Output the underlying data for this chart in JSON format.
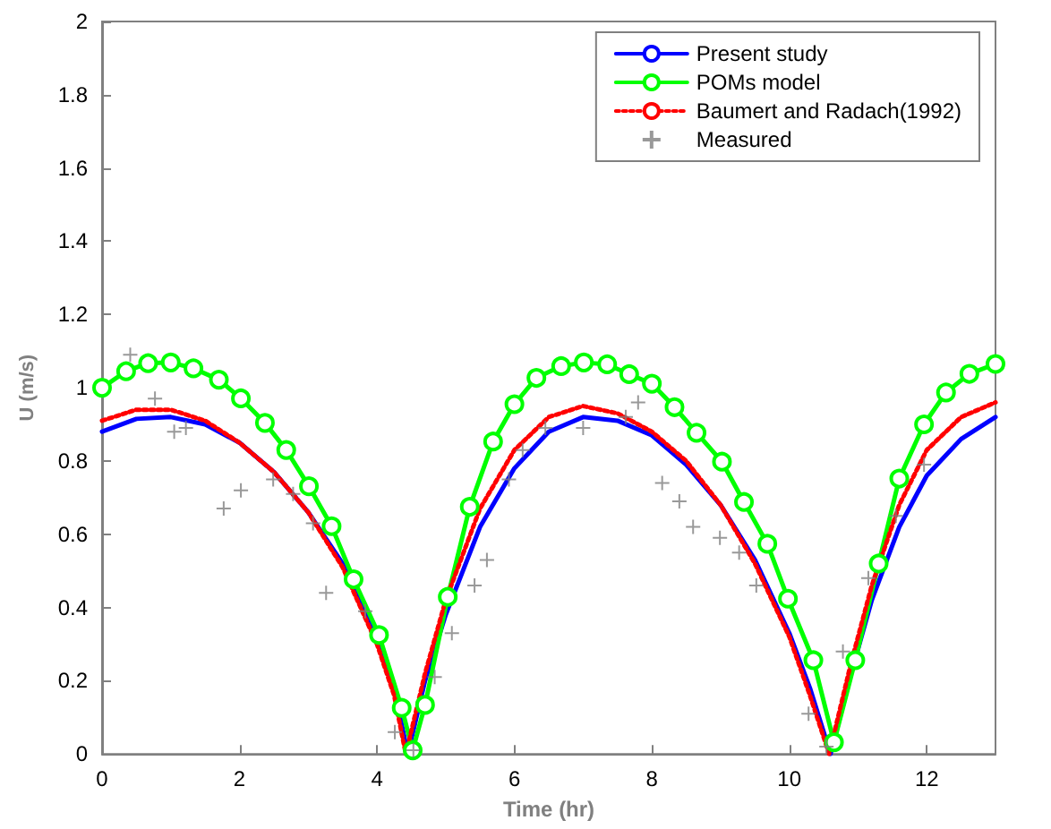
{
  "chart_data": {
    "type": "line",
    "xlabel": "Time (hr)",
    "ylabel": "U (m/s)",
    "xlim": [
      0,
      13
    ],
    "xticks": [
      0,
      2,
      4,
      6,
      8,
      10,
      12
    ],
    "ylim": [
      0,
      2
    ],
    "yticks": [
      0,
      0.2,
      0.4,
      0.6,
      0.8,
      1,
      1.2,
      1.4,
      1.6,
      1.8,
      2
    ],
    "grid": false,
    "legend": "top right",
    "series": [
      {
        "name": "Present study",
        "color": "#0000ff",
        "marker": "none",
        "line_style": "solid",
        "x": [
          0,
          0.5,
          1,
          1.5,
          2,
          2.5,
          3,
          3.5,
          4,
          4.25,
          4.45,
          4.7,
          5,
          5.5,
          6,
          6.5,
          7,
          7.5,
          8,
          8.5,
          9,
          9.5,
          10,
          10.3,
          10.6,
          10.9,
          11.2,
          11.6,
          12,
          12.5,
          13
        ],
        "values": [
          0.88,
          0.915,
          0.92,
          0.9,
          0.85,
          0.77,
          0.66,
          0.52,
          0.32,
          0.18,
          0,
          0.2,
          0.38,
          0.62,
          0.78,
          0.88,
          0.92,
          0.91,
          0.87,
          0.79,
          0.68,
          0.53,
          0.33,
          0.18,
          0,
          0.22,
          0.42,
          0.62,
          0.76,
          0.86,
          0.92
        ]
      },
      {
        "name": "POMs model",
        "color": "#00ff00",
        "marker": "circle",
        "line_style": "solid",
        "x": [
          0,
          0.35,
          0.67,
          1,
          1.33,
          1.7,
          2.02,
          2.37,
          2.68,
          3.01,
          3.34,
          3.66,
          4.03,
          4.36,
          4.52,
          4.7,
          5.03,
          5.35,
          5.69,
          6,
          6.32,
          6.68,
          7.01,
          7.35,
          7.67,
          8,
          8.33,
          8.65,
          9.02,
          9.34,
          9.68,
          9.98,
          10.35,
          10.65,
          10.96,
          11.3,
          11.6,
          11.96,
          12.28,
          12.62,
          13
        ],
        "values": [
          1.0,
          1.045,
          1.067,
          1.069,
          1.053,
          1.022,
          0.971,
          0.904,
          0.83,
          0.731,
          0.622,
          0.477,
          0.325,
          0.126,
          0.01,
          0.134,
          0.429,
          0.675,
          0.853,
          0.955,
          1.027,
          1.059,
          1.069,
          1.064,
          1.037,
          1.011,
          0.947,
          0.877,
          0.798,
          0.688,
          0.574,
          0.424,
          0.256,
          0.032,
          0.256,
          0.52,
          0.752,
          0.9,
          0.987,
          1.038,
          1.065
        ]
      },
      {
        "name": "Baumert and Radach(1992)",
        "color": "#ff0000",
        "marker": "none",
        "line_style": "dotted",
        "x": [
          0,
          0.5,
          1,
          1.5,
          2,
          2.5,
          3,
          3.5,
          4,
          4.25,
          4.42,
          4.7,
          5,
          5.5,
          6,
          6.5,
          7,
          7.5,
          8,
          8.5,
          9,
          9.5,
          10,
          10.3,
          10.58,
          10.9,
          11.2,
          11.6,
          12,
          12.5,
          13
        ],
        "values": [
          0.91,
          0.94,
          0.94,
          0.91,
          0.85,
          0.77,
          0.66,
          0.51,
          0.3,
          0.16,
          0,
          0.22,
          0.42,
          0.67,
          0.83,
          0.92,
          0.95,
          0.93,
          0.88,
          0.8,
          0.68,
          0.52,
          0.32,
          0.16,
          0,
          0.25,
          0.46,
          0.68,
          0.83,
          0.92,
          0.96
        ]
      },
      {
        "name": "Measured",
        "type": "scatter",
        "color": "#808080",
        "marker": "cross",
        "x": [
          0.41,
          0.77,
          1.05,
          1.22,
          1.77,
          2.02,
          2.49,
          2.78,
          3.07,
          3.26,
          3.83,
          4.26,
          4.53,
          4.84,
          5.09,
          5.42,
          5.6,
          5.92,
          6.12,
          6.45,
          7.0,
          7.62,
          7.8,
          8.15,
          8.4,
          8.6,
          8.99,
          9.27,
          9.52,
          10.28,
          10.54,
          10.78,
          11.15,
          11.55,
          11.96
        ],
        "values": [
          1.09,
          0.97,
          0.88,
          0.89,
          0.67,
          0.72,
          0.75,
          0.71,
          0.63,
          0.44,
          0.39,
          0.06,
          0.01,
          0.21,
          0.33,
          0.46,
          0.53,
          0.75,
          0.83,
          0.89,
          0.89,
          0.92,
          0.96,
          0.74,
          0.69,
          0.62,
          0.59,
          0.55,
          0.46,
          0.11,
          0.02,
          0.28,
          0.48,
          0.65,
          0.79
        ]
      }
    ]
  }
}
